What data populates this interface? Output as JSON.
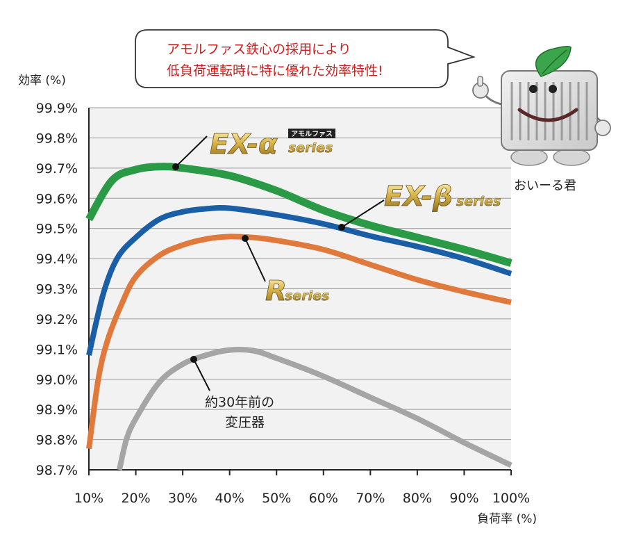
{
  "chart_data": {
    "type": "line",
    "ylabel": "効率 (%)",
    "xlabel": "負荷率 (%)",
    "x": [
      10,
      20,
      30,
      40,
      50,
      60,
      70,
      80,
      90,
      100
    ],
    "x_tick_labels": [
      "10%",
      "20%",
      "30%",
      "40%",
      "50%",
      "60%",
      "70%",
      "80%",
      "90%",
      "100%"
    ],
    "ylim": [
      98.7,
      99.9
    ],
    "y_ticks": [
      98.7,
      98.8,
      98.9,
      99.0,
      99.1,
      99.2,
      99.3,
      99.4,
      99.5,
      99.6,
      99.7,
      99.8,
      99.9
    ],
    "y_tick_labels": [
      "98.7%",
      "98.8%",
      "98.9%",
      "99.0%",
      "99.1%",
      "99.2%",
      "99.3%",
      "99.4%",
      "99.5%",
      "99.6%",
      "99.7%",
      "99.8%",
      "99.9%"
    ],
    "grid": "horizontal",
    "series": [
      {
        "name": "EX-α series",
        "color": "#2a9a46",
        "points": [
          [
            10,
            99.53
          ],
          [
            15,
            99.66
          ],
          [
            20,
            99.695
          ],
          [
            25,
            99.705
          ],
          [
            30,
            99.7
          ],
          [
            40,
            99.675
          ],
          [
            50,
            99.625
          ],
          [
            60,
            99.56
          ],
          [
            70,
            99.51
          ],
          [
            80,
            99.47
          ],
          [
            90,
            99.43
          ],
          [
            100,
            99.385
          ]
        ]
      },
      {
        "name": "EX-β series",
        "color": "#1a5fa6",
        "points": [
          [
            10,
            99.08
          ],
          [
            13,
            99.28
          ],
          [
            16,
            99.4
          ],
          [
            20,
            99.47
          ],
          [
            25,
            99.53
          ],
          [
            30,
            99.555
          ],
          [
            35,
            99.565
          ],
          [
            40,
            99.567
          ],
          [
            50,
            99.545
          ],
          [
            60,
            99.515
          ],
          [
            70,
            99.475
          ],
          [
            80,
            99.44
          ],
          [
            90,
            99.4
          ],
          [
            100,
            99.35
          ]
        ]
      },
      {
        "name": "R series",
        "color": "#e07a3c",
        "points": [
          [
            10,
            98.77
          ],
          [
            12,
            99.0
          ],
          [
            14,
            99.13
          ],
          [
            17,
            99.25
          ],
          [
            20,
            99.34
          ],
          [
            25,
            99.41
          ],
          [
            30,
            99.445
          ],
          [
            35,
            99.465
          ],
          [
            40,
            99.473
          ],
          [
            45,
            99.47
          ],
          [
            50,
            99.46
          ],
          [
            60,
            99.43
          ],
          [
            70,
            99.38
          ],
          [
            80,
            99.33
          ],
          [
            90,
            99.29
          ],
          [
            100,
            99.255
          ]
        ]
      },
      {
        "name": "約30年前の変圧器",
        "color": "#a5a5a5",
        "points": [
          [
            16.5,
            98.7
          ],
          [
            18,
            98.8
          ],
          [
            20,
            98.87
          ],
          [
            25,
            98.99
          ],
          [
            30,
            99.05
          ],
          [
            35,
            99.08
          ],
          [
            40,
            99.097
          ],
          [
            45,
            99.095
          ],
          [
            50,
            99.07
          ],
          [
            60,
            99.01
          ],
          [
            70,
            98.94
          ],
          [
            80,
            98.87
          ],
          [
            90,
            98.79
          ],
          [
            100,
            98.715
          ]
        ]
      }
    ]
  },
  "callout": {
    "line1": "アモルファス鉄心の採用により",
    "line2": "低負荷運転時に特に優れた効率特性!"
  },
  "labels": {
    "ex_alpha_main": "EX-α",
    "ex_alpha_tag": "アモルファス",
    "ex_alpha_sub": "series",
    "ex_beta_main": "EX-β",
    "ex_beta_sub": "series",
    "r_main": "R",
    "r_sub": "series",
    "old_line1": "約30年前の",
    "old_line2": "変圧器"
  },
  "mascot": {
    "name": "おいーる君"
  }
}
